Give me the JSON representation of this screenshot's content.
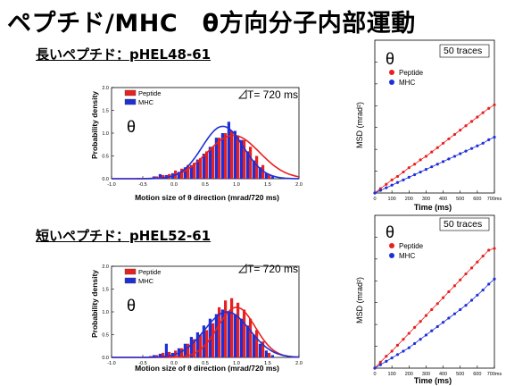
{
  "title": "ペプチド/MHC　θ方向分子内部運動",
  "sections": [
    {
      "subtitle": "長いペプチド：pHEL48-61"
    },
    {
      "subtitle": "短いペプチド：pHEL52-61"
    }
  ],
  "colors": {
    "peptide": "#e8201e",
    "mhc": "#1f2fd8"
  },
  "chart_data": [
    {
      "type": "bar",
      "xlabel": "Motion size of θ direction (mrad/720 ms)",
      "ylabel": "Probability density",
      "annotation_dt": "T= 720 ms",
      "theta": "θ",
      "xlim": [
        -1.0,
        2.0
      ],
      "ylim": [
        0,
        2.0
      ],
      "xticks": [
        "-1.0",
        "-0.5",
        "0.0",
        "0.5",
        "1.0",
        "1.5",
        "2.0"
      ],
      "yticks": [
        "0.0",
        "0.5",
        "1.0",
        "1.5",
        "2.0"
      ],
      "legend": [
        "Peptide",
        "MHC"
      ],
      "bin_centers": [
        -0.35,
        -0.25,
        -0.15,
        -0.05,
        0.05,
        0.15,
        0.25,
        0.35,
        0.45,
        0.55,
        0.65,
        0.75,
        0.85,
        0.95,
        1.05,
        1.15,
        1.25,
        1.35,
        1.45,
        1.55
      ],
      "series": [
        {
          "name": "Peptide",
          "values": [
            0.02,
            0.05,
            0.08,
            0.1,
            0.18,
            0.22,
            0.3,
            0.35,
            0.45,
            0.6,
            0.7,
            0.9,
            1.0,
            1.05,
            0.95,
            0.85,
            0.7,
            0.5,
            0.3,
            0.1
          ]
        },
        {
          "name": "MHC",
          "values": [
            0.05,
            0.1,
            0.08,
            0.12,
            0.15,
            0.25,
            0.3,
            0.42,
            0.55,
            0.7,
            0.9,
            1.0,
            1.25,
            1.05,
            0.85,
            0.6,
            0.4,
            0.25,
            0.12,
            0.05
          ]
        }
      ],
      "fits": [
        {
          "name": "Peptide",
          "mean": 0.95,
          "sd": 0.42,
          "peak": 0.95
        },
        {
          "name": "MHC",
          "mean": 0.78,
          "sd": 0.33,
          "peak": 1.15
        }
      ]
    },
    {
      "type": "line",
      "xlabel": "Time (ms)",
      "ylabel": "MSD (mrad²)",
      "traces": "50 traces",
      "theta": "θ",
      "xlim": [
        0,
        700
      ],
      "xticks": [
        "0",
        "100",
        "200",
        "300",
        "400",
        "500",
        "600",
        "700ms"
      ],
      "legend": [
        "Peptide",
        "MHC"
      ],
      "x": [
        0,
        33,
        67,
        100,
        133,
        167,
        200,
        233,
        267,
        300,
        333,
        367,
        400,
        433,
        467,
        500,
        533,
        567,
        600,
        633,
        667,
        700
      ],
      "series": [
        {
          "name": "Peptide",
          "values": [
            0,
            5,
            10,
            15,
            19,
            24,
            29,
            33,
            38,
            42,
            47,
            52,
            57,
            62,
            67,
            72,
            77,
            82,
            87,
            92,
            97,
            101
          ]
        },
        {
          "name": "MHC",
          "values": [
            0,
            3,
            6,
            9,
            12,
            15,
            18,
            21,
            24,
            27,
            30,
            33,
            36,
            39,
            42,
            45,
            48,
            51,
            54,
            57,
            61,
            64
          ]
        }
      ]
    },
    {
      "type": "bar",
      "xlabel": "Motion size of θ direction (mrad/720 ms)",
      "ylabel": "Probability density",
      "annotation_dt": "T= 720 ms",
      "theta": "θ",
      "xlim": [
        -1.0,
        2.0
      ],
      "ylim": [
        0,
        2.0
      ],
      "xticks": [
        "-1.0",
        "-0.5",
        "0.0",
        "0.5",
        "1.0",
        "1.5",
        "2.0"
      ],
      "yticks": [
        "0.0",
        "0.5",
        "1.0",
        "1.5",
        "2.0"
      ],
      "legend": [
        "Peptide",
        "MHC"
      ],
      "bin_centers": [
        -0.35,
        -0.25,
        -0.15,
        -0.05,
        0.05,
        0.15,
        0.25,
        0.35,
        0.45,
        0.55,
        0.65,
        0.75,
        0.85,
        0.95,
        1.05,
        1.15,
        1.25,
        1.35,
        1.45,
        1.55
      ],
      "series": [
        {
          "name": "Peptide",
          "values": [
            0.03,
            0.05,
            0.1,
            0.12,
            0.15,
            0.2,
            0.3,
            0.4,
            0.5,
            0.6,
            0.75,
            1.1,
            1.25,
            1.3,
            1.2,
            1.05,
            0.85,
            0.6,
            0.35,
            0.1
          ]
        },
        {
          "name": "MHC",
          "values": [
            0.05,
            0.08,
            0.3,
            0.1,
            0.2,
            0.3,
            0.45,
            0.55,
            0.7,
            0.85,
            0.95,
            1.05,
            1.0,
            0.95,
            0.85,
            0.7,
            0.5,
            0.3,
            0.15,
            0.05
          ]
        }
      ],
      "fits": [
        {
          "name": "Peptide",
          "mean": 1.0,
          "sd": 0.3,
          "peak": 1.1
        },
        {
          "name": "MHC",
          "mean": 0.85,
          "sd": 0.36,
          "peak": 1.0
        }
      ]
    },
    {
      "type": "line",
      "xlabel": "Time (ms)",
      "ylabel": "MSD (mrad²)",
      "traces": "50 traces",
      "theta": "θ",
      "xlim": [
        0,
        700
      ],
      "xticks": [
        "0",
        "100",
        "200",
        "300",
        "400",
        "500",
        "600",
        "700ms"
      ],
      "legend": [
        "Peptide",
        "MHC"
      ],
      "x": [
        0,
        33,
        67,
        100,
        133,
        167,
        200,
        233,
        267,
        300,
        333,
        367,
        400,
        433,
        467,
        500,
        533,
        567,
        600,
        633,
        667,
        700
      ],
      "series": [
        {
          "name": "Peptide",
          "values": [
            0,
            7,
            14,
            20,
            27,
            34,
            41,
            48,
            55,
            62,
            69,
            76,
            83,
            90,
            97,
            104,
            111,
            118,
            125,
            132,
            139,
            141
          ]
        },
        {
          "name": "MHC",
          "values": [
            0,
            4,
            8,
            12,
            16,
            20,
            24,
            29,
            34,
            39,
            44,
            49,
            54,
            59,
            64,
            69,
            74,
            80,
            86,
            92,
            99,
            105
          ]
        }
      ]
    }
  ]
}
